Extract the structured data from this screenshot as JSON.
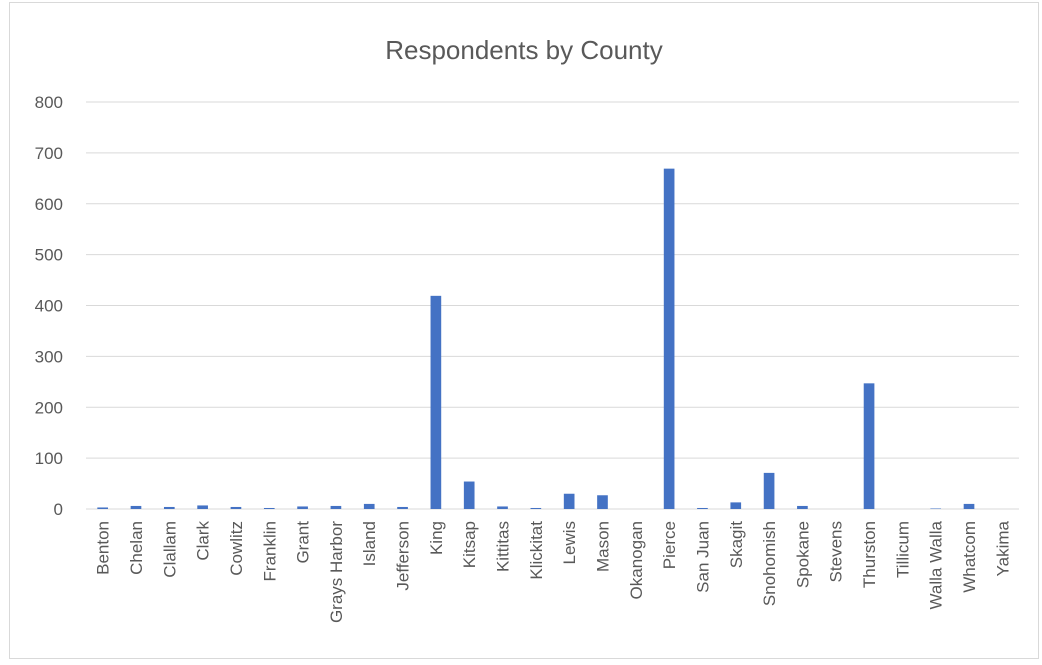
{
  "chart_data": {
    "type": "bar",
    "title": "Respondents by County",
    "xlabel": "",
    "ylabel": "",
    "ylim": [
      0,
      800
    ],
    "yticks": [
      0,
      100,
      200,
      300,
      400,
      500,
      600,
      700,
      800
    ],
    "grid": true,
    "legend": "none",
    "bar_color": "#4472C4",
    "categories": [
      "Benton",
      "Chelan",
      "Clallam",
      "Clark",
      "Cowlitz",
      "Franklin",
      "Grant",
      "Grays Harbor",
      "Island",
      "Jefferson",
      "King",
      "Kitsap",
      "Kittitas",
      "Klickitat",
      "Lewis",
      "Mason",
      "Okanogan",
      "Pierce",
      "San Juan",
      "Skagit",
      "Snohomish",
      "Spokane",
      "Stevens",
      "Thurston",
      "Tillicum",
      "Walla Walla",
      "Whatcom",
      "Yakima"
    ],
    "values": [
      3,
      6,
      4,
      7,
      4,
      2,
      5,
      6,
      10,
      4,
      419,
      54,
      5,
      2,
      30,
      27,
      0,
      669,
      2,
      13,
      71,
      6,
      0,
      247,
      0,
      1,
      10,
      0
    ]
  }
}
